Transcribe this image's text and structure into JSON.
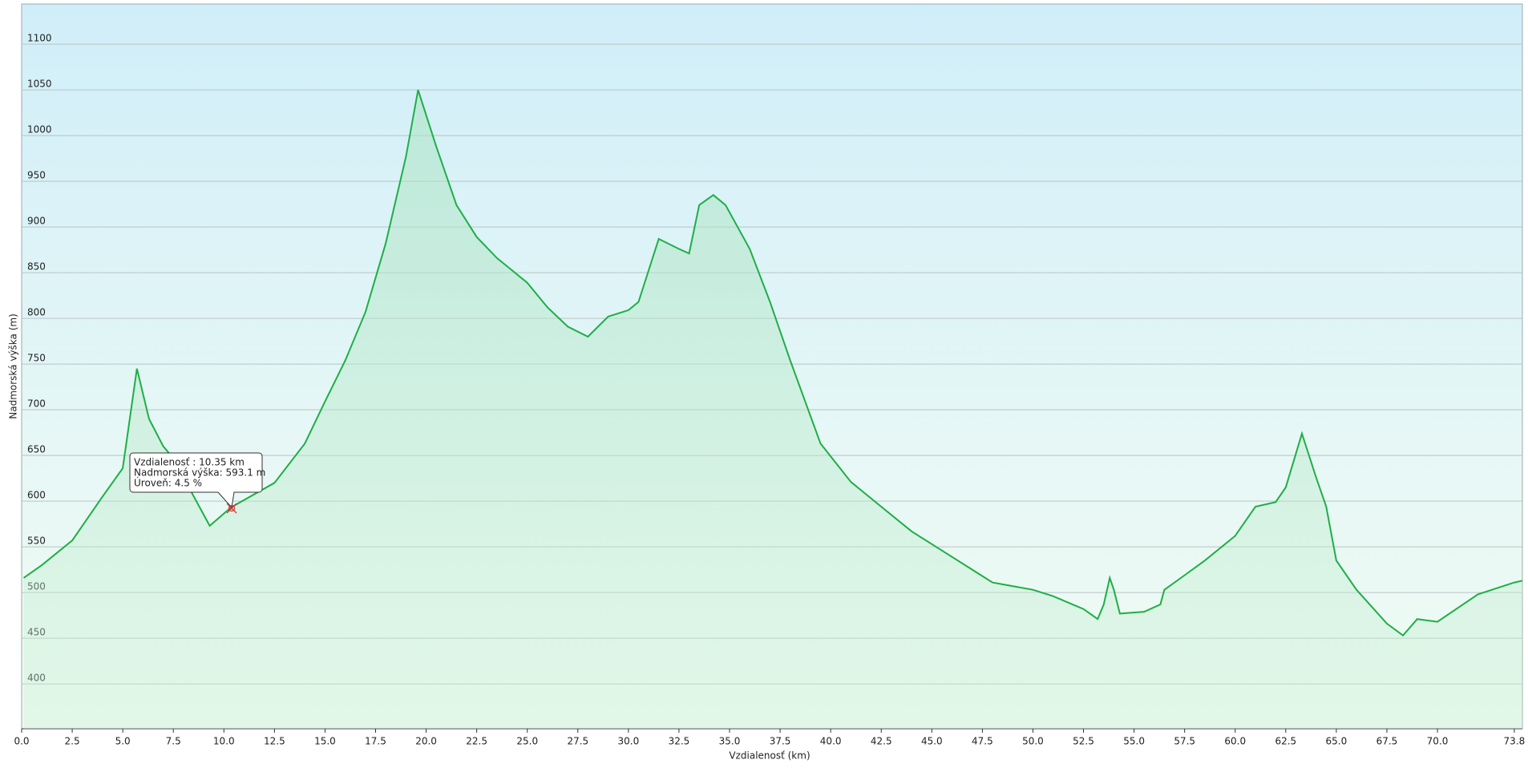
{
  "chart_data": {
    "type": "area",
    "xlabel": "Vzdialenosť (km)",
    "ylabel": "Nadmorská výška (m)",
    "x": [
      0.1,
      1.0,
      2.5,
      4.0,
      5.0,
      5.7,
      6.3,
      7.0,
      7.5,
      8.0,
      9.3,
      10.35,
      12.5,
      14.0,
      15.0,
      16.0,
      17.0,
      18.0,
      19.0,
      19.6,
      20.5,
      21.5,
      22.5,
      23.5,
      25.0,
      26.0,
      27.0,
      28.0,
      29.0,
      30.0,
      30.5,
      31.5,
      32.5,
      33.0,
      33.5,
      34.2,
      34.8,
      36.0,
      37.0,
      38.0,
      39.5,
      41.0,
      42.5,
      44.0,
      45.5,
      47.0,
      48.0,
      50.0,
      51.0,
      52.5,
      53.2,
      53.5,
      53.8,
      54.0,
      54.3,
      55.5,
      56.3,
      56.5,
      57.5,
      58.5,
      60.0,
      61.0,
      62.0,
      62.5,
      63.3,
      64.0,
      64.5,
      65.0,
      66.0,
      67.5,
      68.3,
      69.0,
      70.0,
      72.0,
      73.8,
      74.2
    ],
    "values": [
      516,
      530,
      557,
      605,
      636,
      745,
      690,
      660,
      647,
      626,
      573,
      593.1,
      620,
      663,
      709,
      754,
      807,
      882,
      977,
      1050,
      988,
      924,
      889,
      866,
      839,
      812,
      791,
      780,
      802,
      809,
      818,
      887,
      876,
      871,
      924,
      935,
      924,
      876,
      818,
      754,
      663,
      621,
      594,
      567,
      546,
      525,
      511,
      503,
      496,
      482,
      471,
      487,
      516,
      503,
      477,
      479,
      487,
      503,
      519,
      535,
      562,
      594,
      599,
      615,
      674,
      626,
      594,
      535,
      503,
      466,
      453,
      471,
      468,
      498,
      511,
      513
    ],
    "color": "#1fae45",
    "xlim": [
      0,
      74.2
    ],
    "ylim": [
      351,
      1144
    ],
    "xticks": [
      {
        "value": 0,
        "label": "0.0"
      },
      2.5,
      {
        "value": 5,
        "label": "5.0"
      },
      7.5,
      {
        "value": 10,
        "label": "10.0"
      },
      12.5,
      {
        "value": 15,
        "label": "15.0"
      },
      17.5,
      {
        "value": 20,
        "label": "20.0"
      },
      22.5,
      {
        "value": 25,
        "label": "25.0"
      },
      27.5,
      {
        "value": 30,
        "label": "30.0"
      },
      32.5,
      {
        "value": 35,
        "label": "35.0"
      },
      37.5,
      {
        "value": 40,
        "label": "40.0"
      },
      42.5,
      {
        "value": 45,
        "label": "45.0"
      },
      47.5,
      {
        "value": 50,
        "label": "50.0"
      },
      52.5,
      {
        "value": 55,
        "label": "55.0"
      },
      57.5,
      {
        "value": 60,
        "label": "60.0"
      },
      62.5,
      {
        "value": 65,
        "label": "65.0"
      },
      67.5,
      {
        "value": 70,
        "label": "70.0"
      },
      73.8
    ],
    "yticks": [
      400,
      450,
      500,
      550,
      600,
      650,
      700,
      750,
      800,
      850,
      900,
      950,
      1000,
      1050,
      1100
    ],
    "grid": true,
    "tooltip": {
      "lines": [
        "Vzdialenosť : 10.35 km",
        "Nadmorská výška: 593.1 m",
        "Úroveň: 4.5 %"
      ]
    }
  }
}
